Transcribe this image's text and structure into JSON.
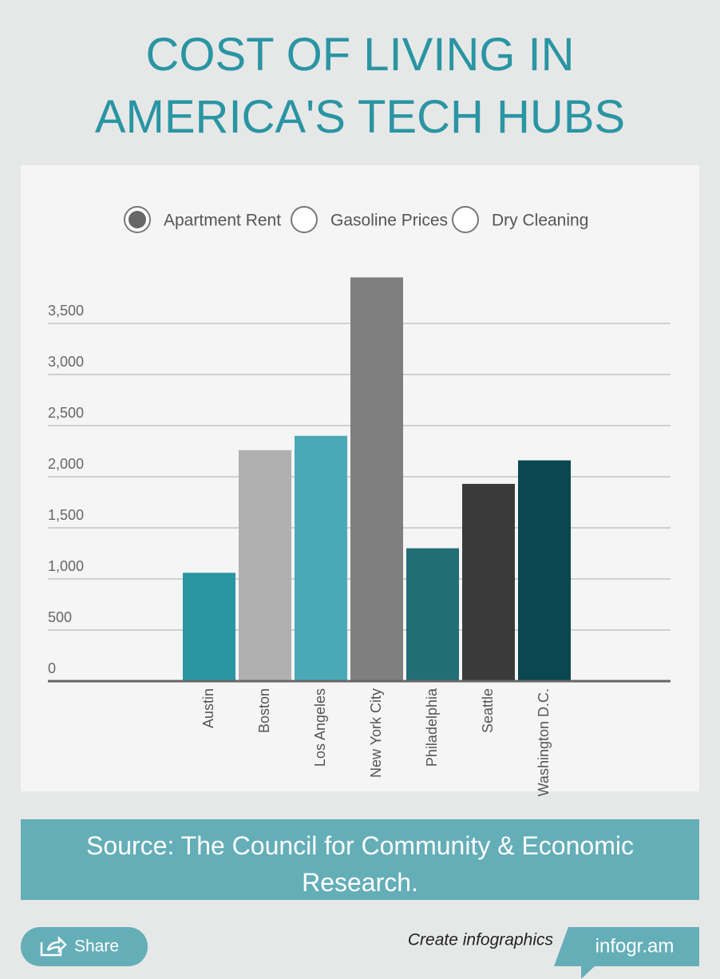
{
  "header": {
    "title": "COST OF LIVING IN AMERICA'S TECH HUBS"
  },
  "controls": {
    "options": [
      "Apartment Rent",
      "Gasoline Prices",
      "Dry Cleaning"
    ],
    "selected": "Apartment Rent"
  },
  "chart_data": {
    "type": "bar",
    "categories": [
      "Austin",
      "Boston",
      "Los Angeles",
      "New York City",
      "Philadelphia",
      "Seattle",
      "Washington D.C."
    ],
    "values": [
      1060,
      2260,
      2400,
      3950,
      1300,
      1930,
      2160
    ],
    "colors": [
      "#2a95a3",
      "#b0b0b0",
      "#4ba9b7",
      "#7f7f7f",
      "#216e77",
      "#3a3a3a",
      "#0b4750"
    ],
    "ylim": [
      0,
      4000
    ],
    "yticks": [
      0,
      500,
      {
        "value": 1000,
        "label": "1,000"
      },
      {
        "value": 1500,
        "label": "1,500"
      },
      {
        "value": 2000,
        "label": "2,000"
      },
      {
        "value": 2500,
        "label": "2,500"
      },
      {
        "value": 3000,
        "label": "3,000"
      },
      {
        "value": 3500,
        "label": "3,500"
      }
    ],
    "grid": true
  },
  "source": "Source: The Council for Community & Economic Research.",
  "footer": {
    "share": "Share",
    "tagline": "Create infographics",
    "brand": "infogr.am"
  }
}
